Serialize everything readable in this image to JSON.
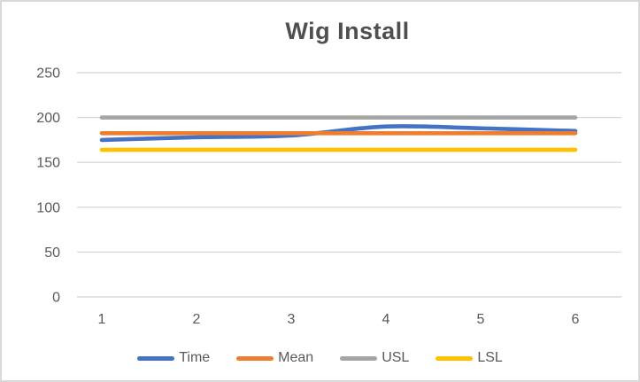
{
  "chart_data": {
    "type": "line",
    "title": "Wig Install",
    "x": [
      1,
      2,
      3,
      4,
      5,
      6
    ],
    "series": [
      {
        "name": "Time",
        "color": "#4472C4",
        "values": [
          175,
          178,
          180,
          190,
          188,
          185
        ]
      },
      {
        "name": "Mean",
        "color": "#ED7D31",
        "values": [
          182.5,
          182.5,
          182.5,
          182.5,
          182.5,
          182.5
        ]
      },
      {
        "name": "USL",
        "color": "#A5A5A5",
        "values": [
          200,
          200,
          200,
          200,
          200,
          200
        ]
      },
      {
        "name": "LSL",
        "color": "#FFC000",
        "values": [
          164,
          164,
          164,
          164,
          164,
          164
        ]
      }
    ],
    "xlabel": "",
    "ylabel": "",
    "ylim": [
      0,
      250
    ],
    "yticks": [
      0,
      50,
      100,
      150,
      200,
      250
    ],
    "grid": true,
    "line_style": "smoothed",
    "legend_position": "bottom"
  },
  "palette": {
    "title_text": "#4F4F4F",
    "axis_text": "#595959",
    "gridline": "#D9D9D9",
    "frame_border": "#D9D9D9",
    "background": "#FFFFFF"
  }
}
